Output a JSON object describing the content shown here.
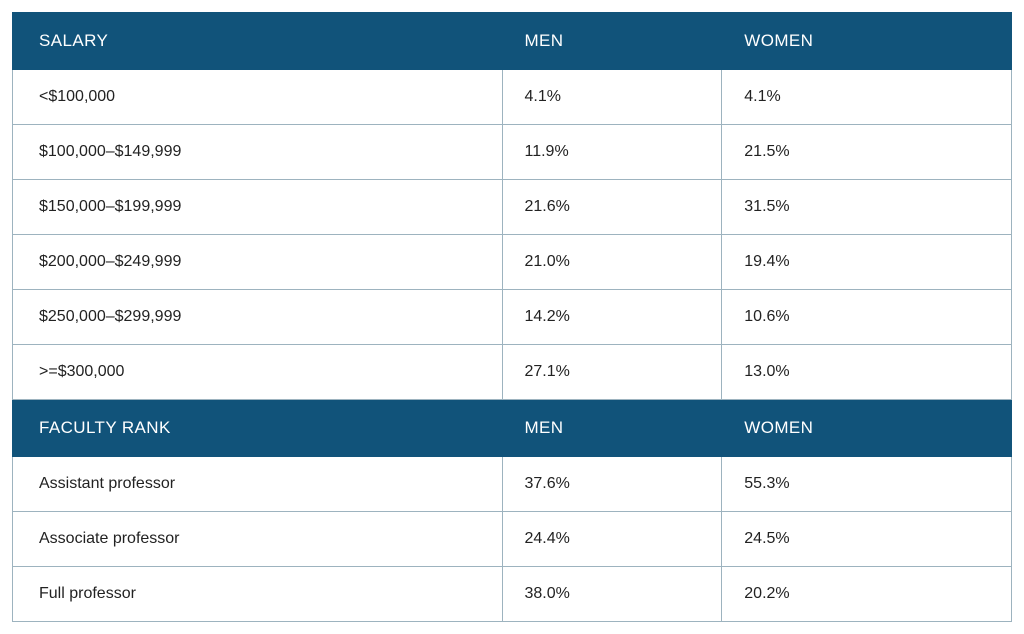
{
  "table": {
    "type": "table",
    "header_bg": "#11537a",
    "header_fg": "#ffffff",
    "cell_bg": "#ffffff",
    "cell_fg": "#222222",
    "border_color": "#9db3bf",
    "header_fontsize": 17,
    "cell_fontsize": 16,
    "col_widths_pct": [
      49,
      22,
      29
    ],
    "sections": [
      {
        "headers": [
          "SALARY",
          "MEN",
          "WOMEN"
        ],
        "rows": [
          [
            "<$100,000",
            "4.1%",
            "4.1%"
          ],
          [
            "$100,000–$149,999",
            "11.9%",
            "21.5%"
          ],
          [
            "$150,000–$199,999",
            "21.6%",
            "31.5%"
          ],
          [
            "$200,000–$249,999",
            "21.0%",
            "19.4%"
          ],
          [
            "$250,000–$299,999",
            "14.2%",
            "10.6%"
          ],
          [
            ">=$300,000",
            "27.1%",
            "13.0%"
          ]
        ]
      },
      {
        "headers": [
          "FACULTY RANK",
          "MEN",
          "WOMEN"
        ],
        "rows": [
          [
            "Assistant professor",
            "37.6%",
            "55.3%"
          ],
          [
            "Associate professor",
            "24.4%",
            "24.5%"
          ],
          [
            "Full professor",
            "38.0%",
            "20.2%"
          ]
        ]
      }
    ]
  }
}
